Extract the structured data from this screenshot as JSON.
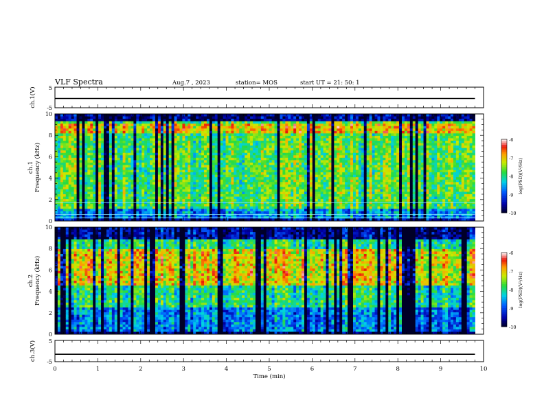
{
  "header": {
    "title": "VLF Spectra",
    "date": "Aug.7 , 2023",
    "station": "station= MOS",
    "start": "start UT = 21: 50: 1"
  },
  "chart_data": [
    {
      "type": "line",
      "panel": "ch1-waveform",
      "ylabel": "ch.1(V)",
      "ylim": [
        -5,
        5
      ],
      "yticks": [
        "5",
        "-5"
      ],
      "xlim": [
        0,
        10
      ],
      "series": [
        {
          "x": [
            0,
            9.8
          ],
          "values": [
            -0.5,
            -0.5
          ]
        }
      ]
    },
    {
      "type": "heatmap",
      "panel": "ch1-spectrogram",
      "ylabel": "ch.1 Frequency (kHz)",
      "ylim": [
        0,
        10
      ],
      "yticks": [
        "0",
        "2",
        "4",
        "6",
        "8",
        "10"
      ],
      "xlim": [
        0,
        10
      ],
      "data_extent_x": [
        0,
        9.8
      ],
      "band_lines_khz": [
        0.3,
        0.6,
        1.7
      ],
      "colorbar": {
        "label": "log(PSD)(V²/Hz)",
        "range": [
          -10,
          -6
        ],
        "ticks": [
          "-6",
          "-7",
          "-8",
          "-9",
          "-10"
        ]
      }
    },
    {
      "type": "heatmap",
      "panel": "ch2-spectrogram",
      "ylabel": "ch.2 Frequency (kHz)",
      "ylim": [
        0,
        10
      ],
      "yticks": [
        "0",
        "2",
        "4",
        "6",
        "8",
        "10"
      ],
      "xlim": [
        0,
        10
      ],
      "data_extent_x": [
        0,
        9.8
      ],
      "colorbar": {
        "label": "log(PSD)(V²/Hz)",
        "range": [
          -10,
          -6
        ],
        "ticks": [
          "-6",
          "-7",
          "-8",
          "-9",
          "-10"
        ]
      }
    },
    {
      "type": "line",
      "panel": "ch3-waveform",
      "ylabel": "ch.3(V)",
      "ylim": [
        -5,
        5
      ],
      "yticks": [
        "5",
        "-5"
      ],
      "xlim": [
        0,
        10
      ],
      "series": [
        {
          "x": [
            0,
            9.8
          ],
          "values": [
            -1.5,
            -1.5
          ]
        }
      ],
      "xlabel": "Time (min)",
      "xticks": [
        "0",
        "1",
        "2",
        "3",
        "4",
        "5",
        "6",
        "7",
        "8",
        "9",
        "10"
      ]
    }
  ]
}
